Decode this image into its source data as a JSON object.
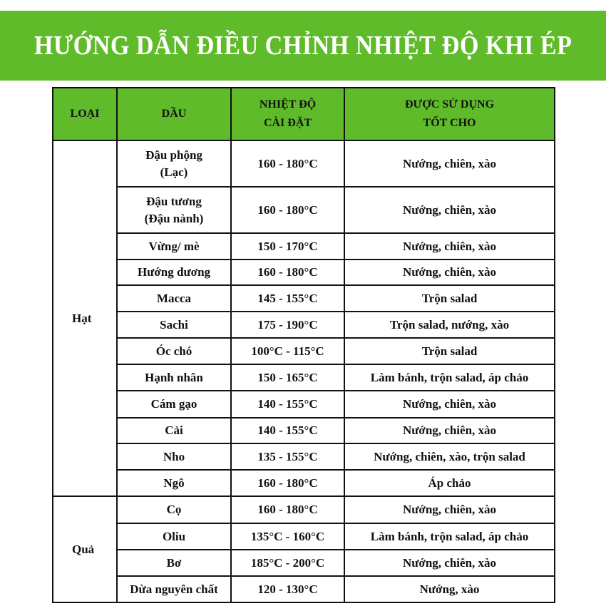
{
  "title": "HƯỚNG DẪN ĐIỀU CHỈNH NHIỆT ĐỘ KHI ÉP",
  "accent_color": "#5fbb2a",
  "headers": {
    "type": "LOẠI",
    "oil": "DẦU",
    "temp_line1": "NHIỆT ĐỘ",
    "temp_line2": "CÀI ĐẶT",
    "use_line1": "ĐƯỢC SỬ DỤNG",
    "use_line2": "TỐT CHO"
  },
  "groups": [
    {
      "label": "Hạt",
      "rows": [
        {
          "oil": "Đậu phộng",
          "oil2": "(Lạc)",
          "temp": "160 - 180°C",
          "use": "Nướng, chiên, xào"
        },
        {
          "oil": "Đậu tương",
          "oil2": "(Đậu nành)",
          "temp": "160 - 180°C",
          "use": "Nướng, chiên, xào"
        },
        {
          "oil": "Vừng/ mè",
          "temp": "150 - 170°C",
          "use": "Nướng, chiên, xào"
        },
        {
          "oil": "Hướng dương",
          "temp": "160 - 180°C",
          "use": "Nướng, chiên, xào"
        },
        {
          "oil": "Macca",
          "temp": "145 - 155°C",
          "use": "Trộn salad"
        },
        {
          "oil": "Sachi",
          "temp": "175 - 190°C",
          "use": "Trộn salad, nướng, xào"
        },
        {
          "oil": "Óc chó",
          "temp": "100°C - 115°C",
          "use": "Trộn salad"
        },
        {
          "oil": "Hạnh nhân",
          "temp": "150 - 165°C",
          "use": "Làm bánh, trộn salad, áp chảo"
        },
        {
          "oil": "Cám gạo",
          "temp": "140 - 155°C",
          "use": "Nướng, chiên, xào"
        },
        {
          "oil": "Cải",
          "temp": "140 - 155°C",
          "use": "Nướng, chiên, xào"
        },
        {
          "oil": "Nho",
          "temp": "135 - 155°C",
          "use": "Nướng, chiên, xào, trộn salad"
        },
        {
          "oil": "Ngô",
          "temp": "160 - 180°C",
          "use": "Áp chảo"
        }
      ]
    },
    {
      "label": "Quả",
      "rows": [
        {
          "oil": "Cọ",
          "temp": "160 - 180°C",
          "use": "Nướng, chiên, xào"
        },
        {
          "oil": "Oliu",
          "temp": "135°C - 160°C",
          "use": "Làm bánh, trộn salad, áp chảo"
        },
        {
          "oil": "Bơ",
          "temp": "185°C - 200°C",
          "use": "Nướng, chiên, xào"
        },
        {
          "oil": "Dừa nguyên chất",
          "temp": "120 - 130°C",
          "use": "Nướng, xào"
        }
      ]
    }
  ]
}
